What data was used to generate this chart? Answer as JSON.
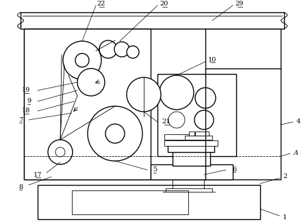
{
  "bg_color": "#ffffff",
  "lw": 1.0,
  "tlw": 0.6,
  "fig_width": 4.44,
  "fig_height": 3.27,
  "dpi": 100
}
